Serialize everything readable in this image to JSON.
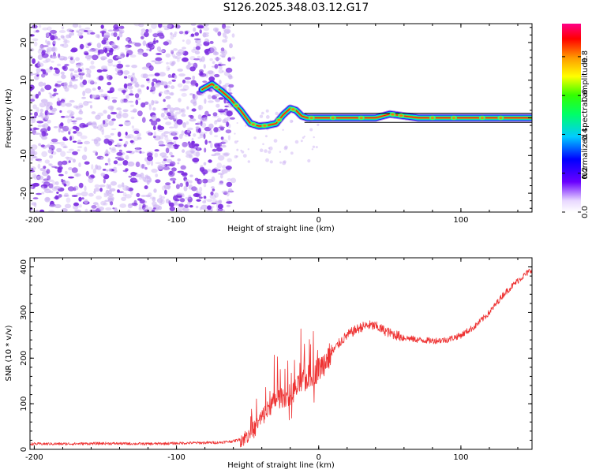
{
  "title": "S126.2025.348.03.12.G17",
  "colors": {
    "snr_line": "#ee3333",
    "scatter": "#7b2be0",
    "scatter_light": "#cdb4f3",
    "fit_line": "#000000"
  },
  "chart_data": [
    {
      "type": "heatmap",
      "title": "S126.2025.348.03.12.G17",
      "xlabel": "Height of straight line (km)",
      "ylabel": "Frequency (Hz)",
      "xlim": [
        -203,
        150
      ],
      "ylim": [
        -25,
        25
      ],
      "xticks": [
        -200,
        -100,
        0,
        100
      ],
      "yticks": [
        -20,
        -10,
        0,
        10,
        20
      ],
      "xtick_labels": [
        "-200",
        "-100",
        "0",
        "100"
      ],
      "ytick_labels": [
        "-20",
        "-10",
        "0",
        "10",
        "20"
      ],
      "noise_region_x": [
        -203,
        -60
      ],
      "ridge": {
        "x": [
          -82,
          -75,
          -68,
          -62,
          -55,
          -48,
          -42,
          -36,
          -30,
          -25,
          -20,
          -16,
          -12,
          -8,
          0,
          20,
          40,
          50,
          60,
          70,
          100,
          130,
          150
        ],
        "y": [
          7.5,
          9,
          7,
          5,
          2,
          -1.5,
          -2.2,
          -2,
          -1.5,
          0.8,
          2.5,
          2,
          0.5,
          0,
          0,
          0,
          0,
          1,
          0.5,
          0,
          0,
          0,
          0
        ]
      },
      "colorbar": {
        "label": "Normalized spectral amplitude",
        "ticks": [
          0.0,
          0.2,
          0.4,
          0.6,
          0.8
        ],
        "tick_labels": [
          "0.0",
          "0.2",
          "0.4",
          "0.6",
          "0.8"
        ],
        "range": [
          0,
          0.97
        ]
      }
    },
    {
      "type": "line",
      "xlabel": "Height of straight line (km)",
      "ylabel": "SNR (10 * v/v)",
      "xlim": [
        -203,
        150
      ],
      "ylim": [
        0,
        420
      ],
      "xticks": [
        -200,
        -100,
        0,
        100
      ],
      "yticks": [
        0,
        100,
        200,
        300,
        400
      ],
      "xtick_labels": [
        "-200",
        "-100",
        "0",
        "100"
      ],
      "ytick_labels": [
        "0",
        "100",
        "200",
        "300",
        "400"
      ],
      "series": [
        {
          "name": "SNR",
          "x": [
            -203,
            -180,
            -150,
            -120,
            -90,
            -70,
            -60,
            -52,
            -45,
            -40,
            -35,
            -30,
            -25,
            -20,
            -15,
            -10,
            -5,
            0,
            5,
            10,
            15,
            20,
            25,
            30,
            35,
            40,
            50,
            60,
            70,
            80,
            90,
            100,
            110,
            120,
            130,
            140,
            150
          ],
          "values": [
            12,
            12,
            13,
            12,
            14,
            15,
            18,
            25,
            45,
            70,
            90,
            110,
            115,
            120,
            135,
            150,
            165,
            175,
            195,
            215,
            235,
            250,
            260,
            268,
            272,
            270,
            255,
            245,
            240,
            238,
            240,
            250,
            270,
            300,
            340,
            370,
            395
          ]
        }
      ]
    }
  ]
}
